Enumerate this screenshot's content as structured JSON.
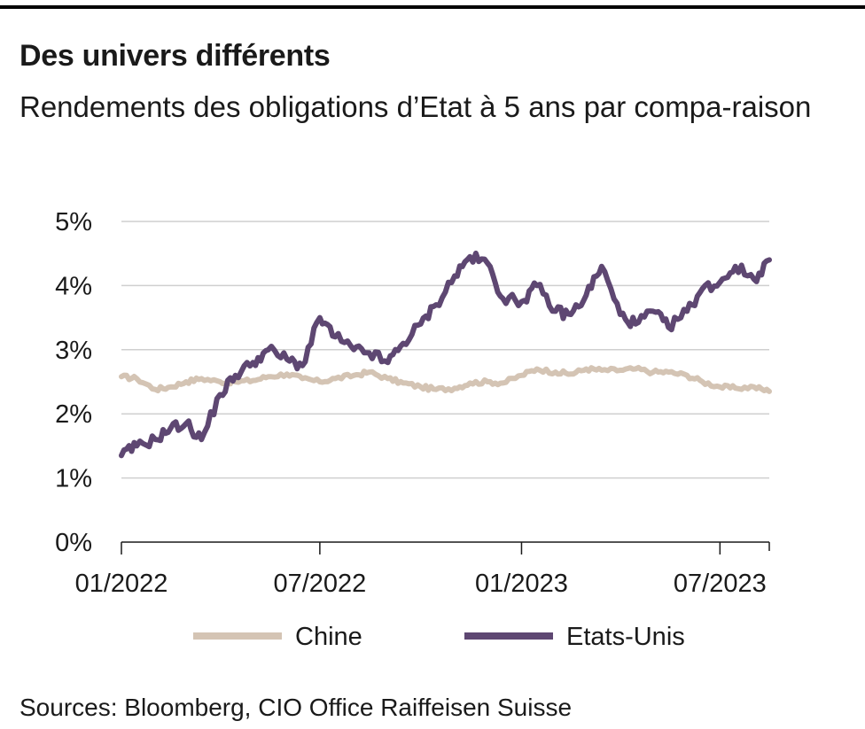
{
  "title": "Des univers différents",
  "subtitle": "Rendements des obligations d’Etat à 5 ans par compa-raison",
  "source": "Sources: Bloomberg, CIO Office Raiffeisen Suisse",
  "colors": {
    "chine": "#d4c4b4",
    "etats_unis": "#5e4772",
    "grid": "#cfcfcf",
    "axis": "#1a1a1a"
  },
  "chart_data": {
    "type": "line",
    "title": "Des univers différents",
    "subtitle": "Rendements des obligations d’Etat à 5 ans par compa-raison",
    "xlabel": "",
    "ylabel": "",
    "ylim": [
      0,
      5
    ],
    "xlim": [
      "2022-01-01",
      "2023-08-15"
    ],
    "y_ticks": [
      0,
      1,
      2,
      3,
      4,
      5
    ],
    "y_tick_labels": [
      "0%",
      "1%",
      "2%",
      "3%",
      "4%",
      "5%"
    ],
    "x_ticks": [
      "2022-01-01",
      "2022-07-01",
      "2023-01-01",
      "2023-07-01"
    ],
    "x_tick_labels": [
      "01/2022",
      "07/2022",
      "01/2023",
      "07/2023"
    ],
    "grid": "horizontal",
    "legend_position": "bottom",
    "series": [
      {
        "name": "Chine",
        "color": "#d4c4b4",
        "points": [
          [
            "2022-01-01",
            2.58
          ],
          [
            "2022-01-15",
            2.55
          ],
          [
            "2022-02-01",
            2.38
          ],
          [
            "2022-02-15",
            2.42
          ],
          [
            "2022-03-01",
            2.5
          ],
          [
            "2022-03-15",
            2.55
          ],
          [
            "2022-04-01",
            2.5
          ],
          [
            "2022-04-15",
            2.5
          ],
          [
            "2022-05-01",
            2.52
          ],
          [
            "2022-05-15",
            2.58
          ],
          [
            "2022-06-01",
            2.62
          ],
          [
            "2022-06-15",
            2.55
          ],
          [
            "2022-07-01",
            2.5
          ],
          [
            "2022-07-15",
            2.55
          ],
          [
            "2022-08-01",
            2.6
          ],
          [
            "2022-08-15",
            2.65
          ],
          [
            "2022-09-01",
            2.55
          ],
          [
            "2022-09-15",
            2.48
          ],
          [
            "2022-10-01",
            2.42
          ],
          [
            "2022-10-15",
            2.38
          ],
          [
            "2022-11-01",
            2.4
          ],
          [
            "2022-11-15",
            2.48
          ],
          [
            "2022-12-01",
            2.5
          ],
          [
            "2022-12-15",
            2.48
          ],
          [
            "2023-01-01",
            2.6
          ],
          [
            "2023-01-15",
            2.7
          ],
          [
            "2023-02-01",
            2.65
          ],
          [
            "2023-02-15",
            2.62
          ],
          [
            "2023-03-01",
            2.7
          ],
          [
            "2023-03-15",
            2.68
          ],
          [
            "2023-04-01",
            2.68
          ],
          [
            "2023-04-15",
            2.7
          ],
          [
            "2023-05-01",
            2.65
          ],
          [
            "2023-05-15",
            2.65
          ],
          [
            "2023-06-01",
            2.6
          ],
          [
            "2023-06-15",
            2.5
          ],
          [
            "2023-07-01",
            2.42
          ],
          [
            "2023-07-15",
            2.4
          ],
          [
            "2023-08-01",
            2.42
          ],
          [
            "2023-08-15",
            2.35
          ]
        ]
      },
      {
        "name": "Etats-Unis",
        "color": "#5e4772",
        "points": [
          [
            "2022-01-01",
            1.35
          ],
          [
            "2022-01-15",
            1.5
          ],
          [
            "2022-02-01",
            1.6
          ],
          [
            "2022-02-15",
            1.78
          ],
          [
            "2022-03-01",
            1.85
          ],
          [
            "2022-03-15",
            1.6
          ],
          [
            "2022-04-01",
            2.3
          ],
          [
            "2022-04-15",
            2.6
          ],
          [
            "2022-05-01",
            2.8
          ],
          [
            "2022-05-15",
            3.0
          ],
          [
            "2022-06-01",
            2.85
          ],
          [
            "2022-06-15",
            2.75
          ],
          [
            "2022-07-01",
            3.5
          ],
          [
            "2022-07-15",
            3.2
          ],
          [
            "2022-08-01",
            3.0
          ],
          [
            "2022-08-15",
            2.95
          ],
          [
            "2022-09-01",
            2.8
          ],
          [
            "2022-09-15",
            3.1
          ],
          [
            "2022-10-01",
            3.4
          ],
          [
            "2022-10-15",
            3.7
          ],
          [
            "2022-11-01",
            4.15
          ],
          [
            "2022-11-15",
            4.45
          ],
          [
            "2022-12-01",
            4.35
          ],
          [
            "2022-12-15",
            3.8
          ],
          [
            "2023-01-01",
            3.75
          ],
          [
            "2023-01-15",
            4.0
          ],
          [
            "2023-02-01",
            3.6
          ],
          [
            "2023-02-15",
            3.55
          ],
          [
            "2023-03-01",
            3.85
          ],
          [
            "2023-03-15",
            4.3
          ],
          [
            "2023-04-01",
            3.55
          ],
          [
            "2023-04-15",
            3.4
          ],
          [
            "2023-05-01",
            3.6
          ],
          [
            "2023-05-15",
            3.35
          ],
          [
            "2023-06-01",
            3.6
          ],
          [
            "2023-06-15",
            3.95
          ],
          [
            "2023-07-01",
            4.05
          ],
          [
            "2023-07-15",
            4.3
          ],
          [
            "2023-08-01",
            4.1
          ],
          [
            "2023-08-15",
            4.4
          ]
        ]
      }
    ]
  }
}
